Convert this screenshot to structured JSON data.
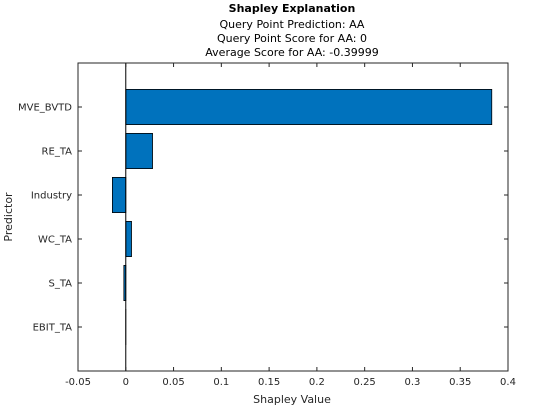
{
  "chart_data": {
    "type": "bar",
    "orientation": "horizontal",
    "title": "Shapley Explanation",
    "subtitle_lines": [
      "Query Point Prediction: AA",
      "Query Point Score for AA: 0",
      "Average Score for AA: -0.39999"
    ],
    "xlabel": "Shapley Value",
    "ylabel": "Predictor",
    "categories": [
      "MVE_BVTD",
      "RE_TA",
      "Industry",
      "WC_TA",
      "S_TA",
      "EBIT_TA"
    ],
    "values": [
      0.383,
      0.028,
      -0.014,
      0.006,
      -0.002,
      0.0
    ],
    "xlim": [
      -0.05,
      0.4
    ],
    "xticks": [
      -0.05,
      0,
      0.05,
      0.1,
      0.15,
      0.2,
      0.25,
      0.3,
      0.35,
      0.4
    ],
    "xtick_labels": [
      "-0.05",
      "0",
      "0.05",
      "0.1",
      "0.15",
      "0.2",
      "0.25",
      "0.3",
      "0.35",
      "0.4"
    ],
    "grid": false,
    "bar_color": "#0072BD",
    "bar_edge_color": "#000000",
    "zero_line_color": "#000000"
  }
}
